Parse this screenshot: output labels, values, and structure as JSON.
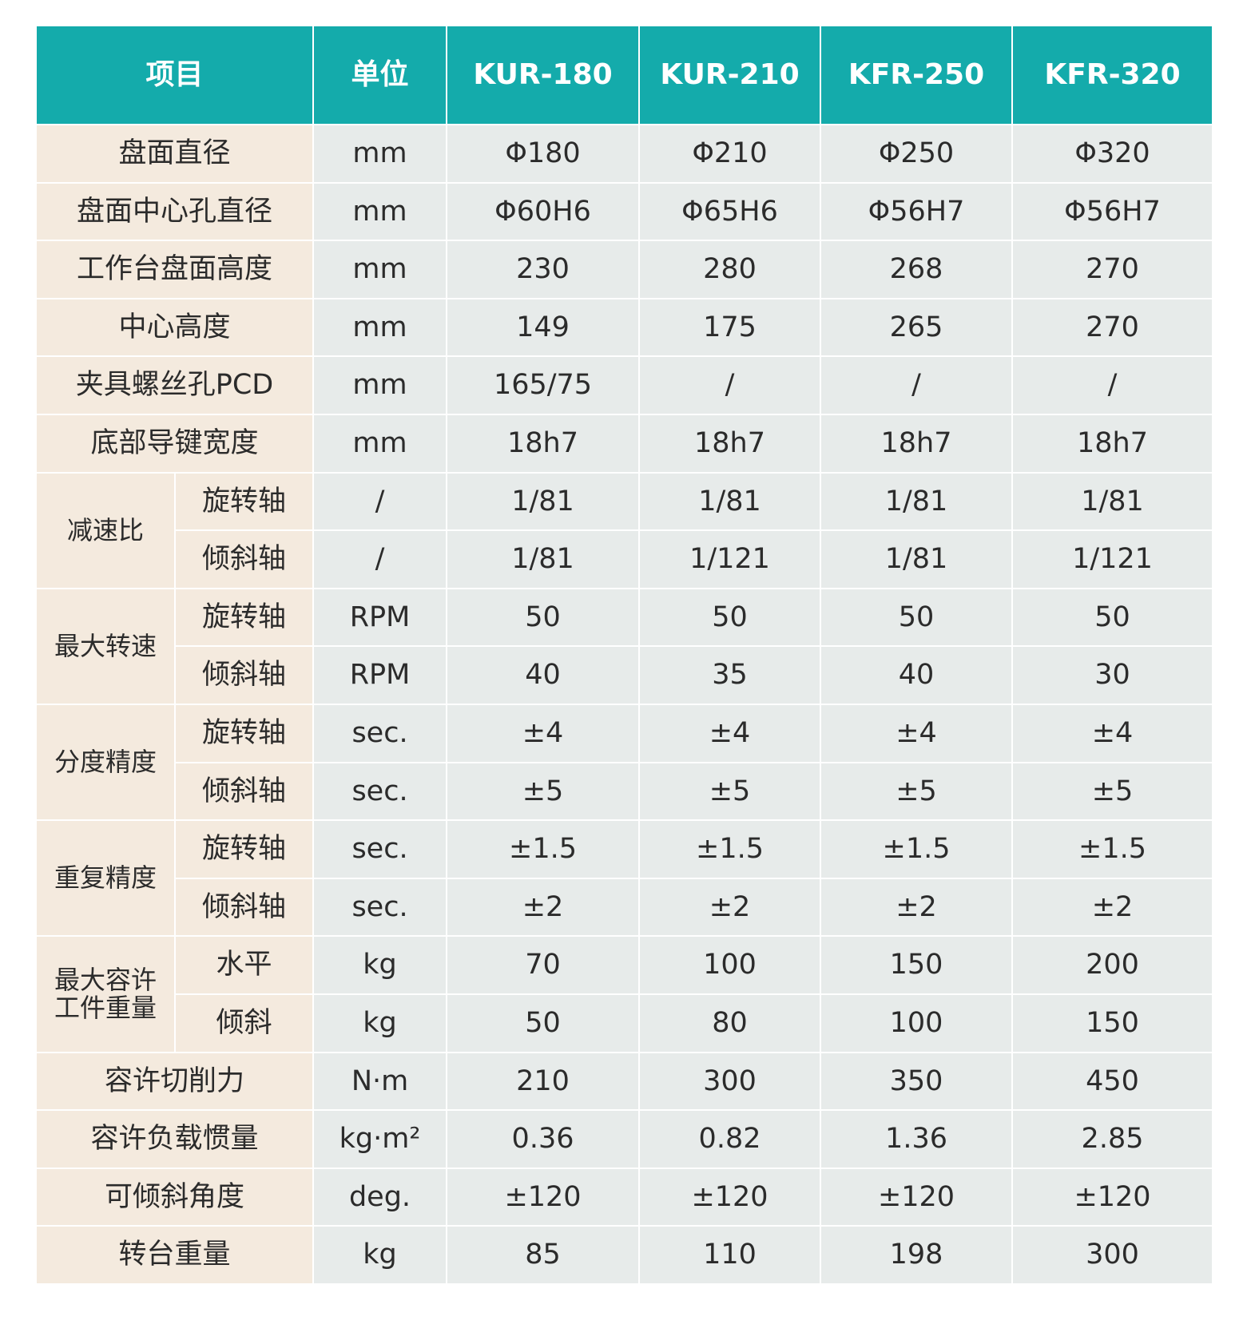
{
  "headers": [
    "项目",
    "单位",
    "KUR-180",
    "KUR-210",
    "KFR-250",
    "KFR-320"
  ],
  "rows": [
    {
      "label": "盘面直径",
      "unit": "mm",
      "values": [
        "Φ180",
        "Φ210",
        "Φ250",
        "Φ320"
      ]
    },
    {
      "label": "盘面中心孔直径",
      "unit": "mm",
      "values": [
        "Φ60H6",
        "Φ65H6",
        "Φ56H7",
        "Φ56H7"
      ]
    },
    {
      "label": "工作台盘面高度",
      "unit": "mm",
      "values": [
        "230",
        "280",
        "268",
        "270"
      ]
    },
    {
      "label": "中心高度",
      "unit": "mm",
      "values": [
        "149",
        "175",
        "265",
        "270"
      ]
    },
    {
      "label": "夹具螺丝孔PCD",
      "unit": "mm",
      "values": [
        "165/75",
        "/",
        "/",
        "/"
      ]
    },
    {
      "label": "底部导键宽度",
      "unit": "mm",
      "values": [
        "18h7",
        "18h7",
        "18h7",
        "18h7"
      ]
    },
    {
      "group": "减速比",
      "label": "旋转轴",
      "unit": "/",
      "values": [
        "1/81",
        "1/81",
        "1/81",
        "1/81"
      ]
    },
    {
      "label": "倾斜轴",
      "unit": "/",
      "values": [
        "1/81",
        "1/121",
        "1/81",
        "1/121"
      ]
    },
    {
      "group": "最大转速",
      "label": "旋转轴",
      "unit": "RPM",
      "values": [
        "50",
        "50",
        "50",
        "50"
      ]
    },
    {
      "label": "倾斜轴",
      "unit": "RPM",
      "values": [
        "40",
        "35",
        "40",
        "30"
      ]
    },
    {
      "group": "分度精度",
      "label": "旋转轴",
      "unit": "sec.",
      "values": [
        "±4",
        "±4",
        "±4",
        "±4"
      ]
    },
    {
      "label": "倾斜轴",
      "unit": "sec.",
      "values": [
        "±5",
        "±5",
        "±5",
        "±5"
      ]
    },
    {
      "group": "重复精度",
      "label": "旋转轴",
      "unit": "sec.",
      "values": [
        "±1.5",
        "±1.5",
        "±1.5",
        "±1.5"
      ]
    },
    {
      "label": "倾斜轴",
      "unit": "sec.",
      "values": [
        "±2",
        "±2",
        "±2",
        "±2"
      ]
    },
    {
      "group": "最大容许\n工件重量",
      "label": "水平",
      "unit": "kg",
      "values": [
        "70",
        "100",
        "150",
        "200"
      ]
    },
    {
      "label": "倾斜",
      "unit": "kg",
      "values": [
        "50",
        "80",
        "100",
        "150"
      ]
    },
    {
      "label": "容许切削力",
      "unit": "N·m",
      "values": [
        "210",
        "300",
        "350",
        "450"
      ]
    },
    {
      "label": "容许负载惯量",
      "unit": "kg·m²",
      "values": [
        "0.36",
        "0.82",
        "1.36",
        "2.85"
      ]
    },
    {
      "label": "可倾斜角度",
      "unit": "deg.",
      "values": [
        "±120",
        "±120",
        "±120",
        "±120"
      ]
    },
    {
      "label": "转台重量",
      "unit": "kg",
      "values": [
        "85",
        "110",
        "198",
        "300"
      ]
    }
  ]
}
